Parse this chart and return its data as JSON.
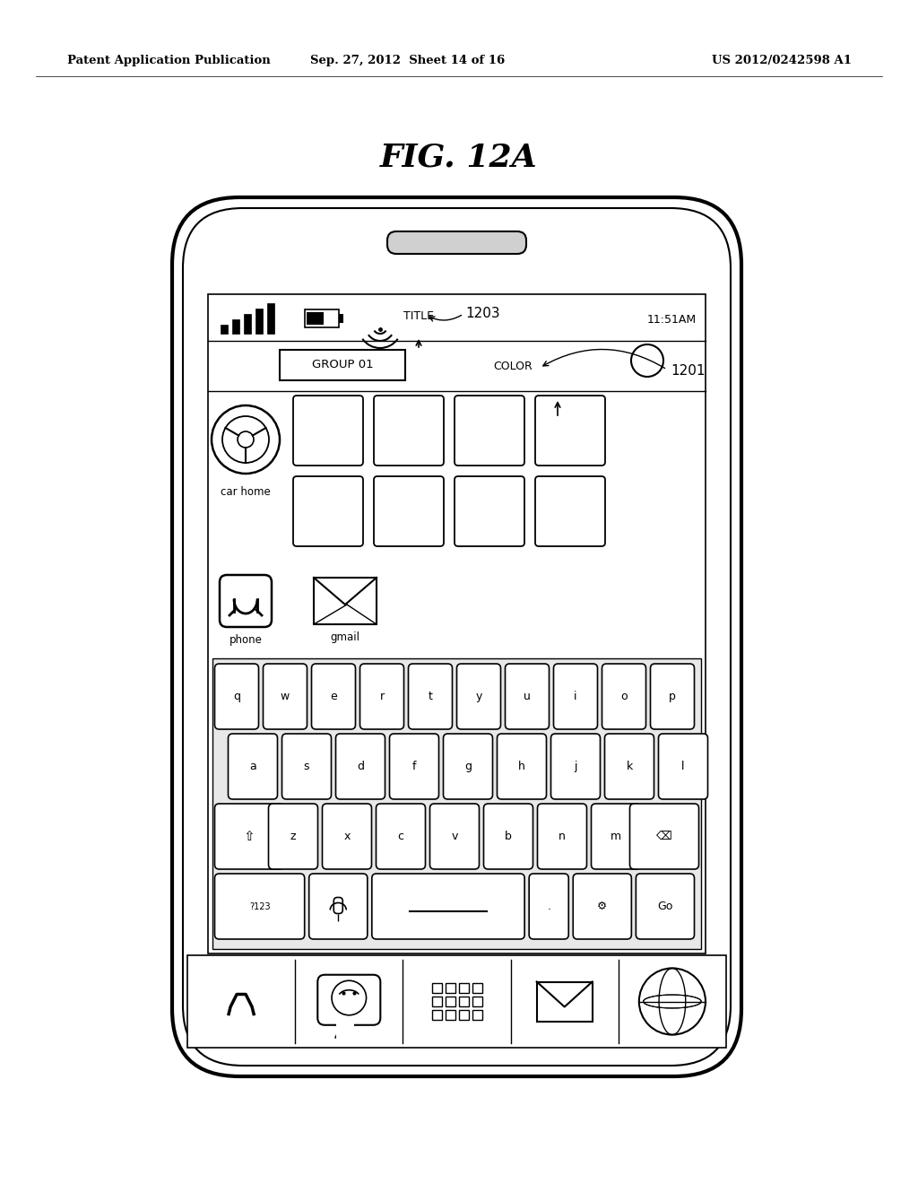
{
  "bg_color": "#ffffff",
  "header_left": "Patent Application Publication",
  "header_mid": "Sep. 27, 2012  Sheet 14 of 16",
  "header_right": "US 2012/0242598 A1",
  "fig_label": "FIG. 12A"
}
